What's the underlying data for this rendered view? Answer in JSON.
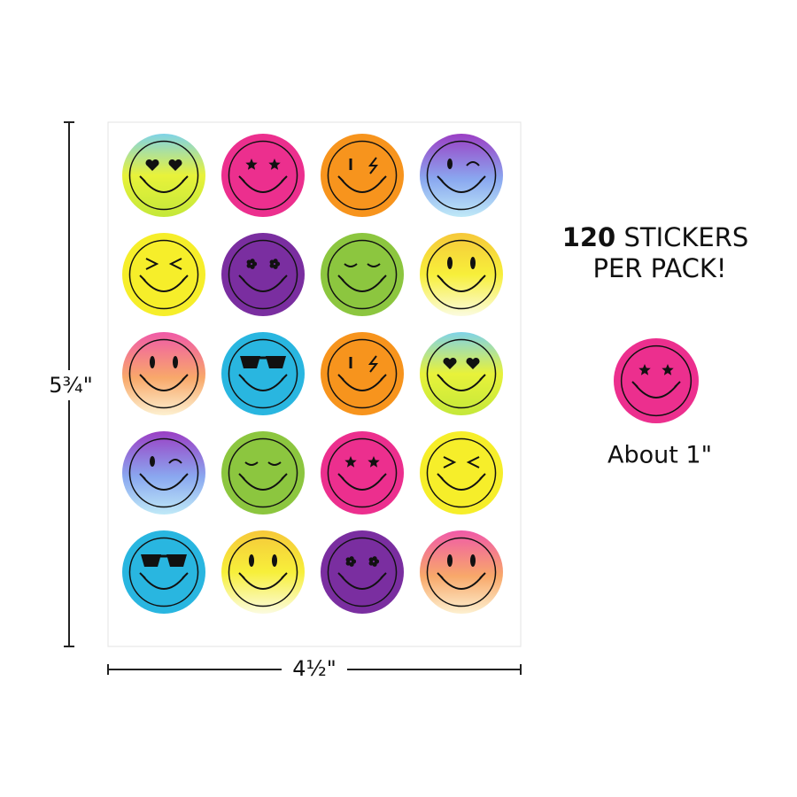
{
  "dimensions": {
    "height": "5¾\"",
    "width": "4½\""
  },
  "pack": {
    "count": "120",
    "unit": "STICKERS",
    "line2": "PER PACK!"
  },
  "sample": {
    "size": "About 1\""
  }
}
